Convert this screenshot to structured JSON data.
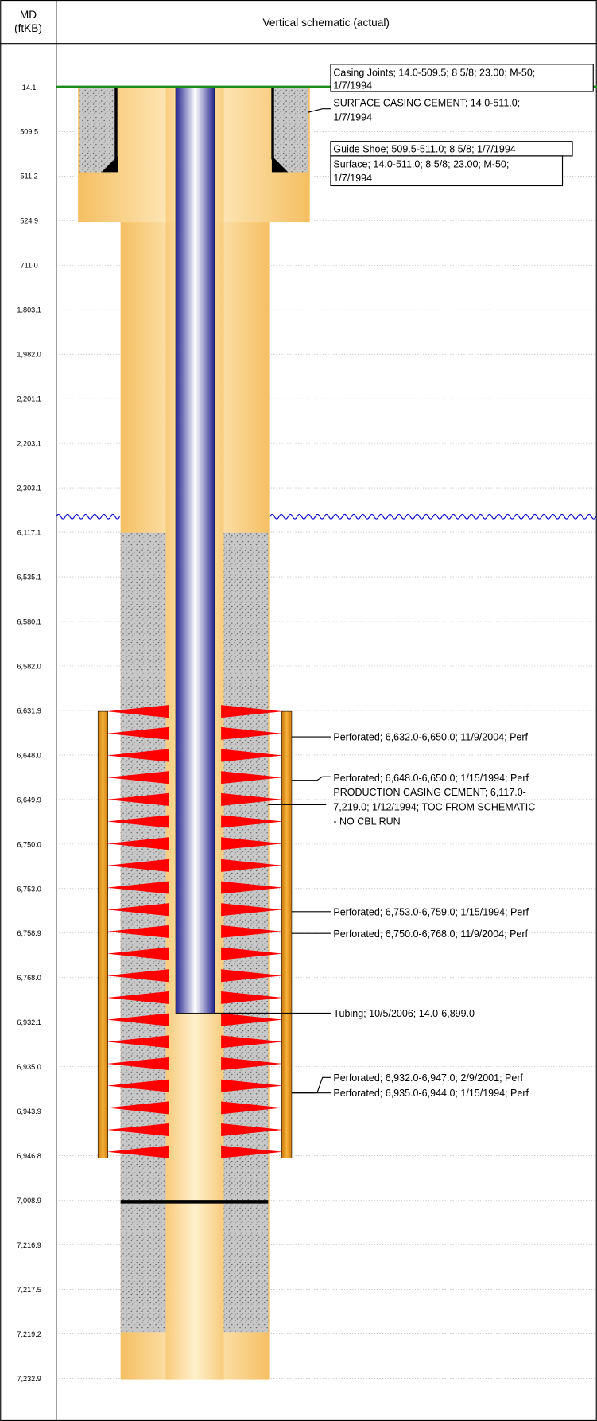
{
  "header": {
    "md_label": [
      "MD",
      "(ftKB)"
    ],
    "title": "Vertical schematic (actual)"
  },
  "depths": [
    "14.1",
    "509.5",
    "511.2",
    "524.9",
    "711.0",
    "1,803.1",
    "1,982.0",
    "2,201.1",
    "2,203.1",
    "2,303.1",
    "6,117.1",
    "6,535.1",
    "6,580.1",
    "6,582.0",
    "6,631.9",
    "6,648.0",
    "6,649.9",
    "6,750.0",
    "6,753.0",
    "6,758.9",
    "6,768.0",
    "6,932.1",
    "6,935.0",
    "6,943.9",
    "6,946.8",
    "7,008.9",
    "7,216.9",
    "7,217.5",
    "7,219.2",
    "7,232.9"
  ],
  "annotations": [
    {
      "lines": [
        "Casing Joints; 14.0-509.5; 8 5/8; 23.00; M-50;",
        "1/7/1994"
      ]
    },
    {
      "lines": [
        "SURFACE CASING CEMENT; 14.0-511.0;",
        "1/7/1994"
      ]
    },
    {
      "lines": [
        "Guide Shoe; 509.5-511.0; 8 5/8; 1/7/1994"
      ]
    },
    {
      "lines": [
        "Surface; 14.0-511.0; 8 5/8; 23.00; M-50;",
        "1/7/1994"
      ]
    },
    {
      "lines": [
        "Perforated; 6,632.0-6,650.0; 11/9/2004; Perf"
      ]
    },
    {
      "lines": [
        "Perforated; 6,648.0-6,650.0; 1/15/1994; Perf"
      ]
    },
    {
      "lines": [
        "PRODUCTION CASING CEMENT; 6,117.0-",
        "7,219.0; 1/12/1994; TOC FROM SCHEMATIC",
        "- NO CBL RUN"
      ]
    },
    {
      "lines": [
        "Perforated; 6,753.0-6,759.0; 1/15/1994; Perf"
      ]
    },
    {
      "lines": [
        "Perforated; 6,750.0-6,768.0; 11/9/2004; Perf"
      ]
    },
    {
      "lines": [
        "Tubing; 10/5/2006; 14.0-6,899.0"
      ]
    },
    {
      "lines": [
        "Perforated; 6,932.0-6,947.0; 2/9/2001; Perf"
      ]
    },
    {
      "lines": [
        "Perforated; 6,935.0-6,944.0; 1/15/1994; Perf"
      ]
    }
  ]
}
